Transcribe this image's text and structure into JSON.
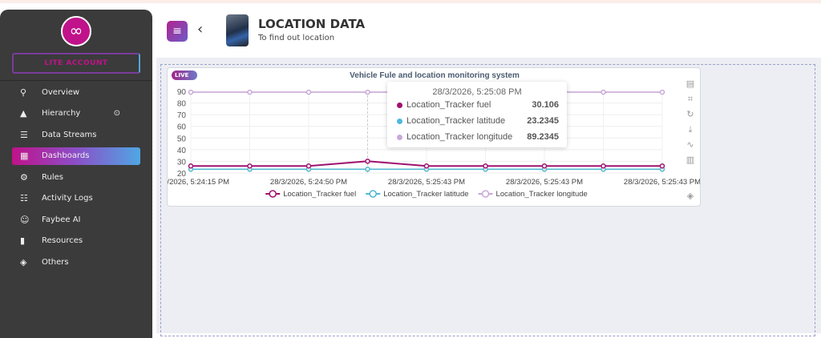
{
  "sidebar": {
    "account": "LITE ACCOUNT",
    "items": [
      {
        "label": "Overview",
        "icon": "search-icon",
        "glyph": "⚲"
      },
      {
        "label": "Hierarchy",
        "icon": "hierarchy-icon",
        "glyph": "▲"
      },
      {
        "label": "Data Streams",
        "icon": "database-icon",
        "glyph": "☰"
      },
      {
        "label": "Dashboards",
        "icon": "dashboard-icon",
        "glyph": "▦"
      },
      {
        "label": "Rules",
        "icon": "gear-icon",
        "glyph": "⚙"
      },
      {
        "label": "Activity Logs",
        "icon": "list-icon",
        "glyph": "☷"
      },
      {
        "label": "Faybee AI",
        "icon": "robot-icon",
        "glyph": "☺"
      },
      {
        "label": "Resources",
        "icon": "book-icon",
        "glyph": "▮"
      },
      {
        "label": "Others",
        "icon": "tag-icon",
        "glyph": "◈"
      }
    ],
    "active": "Dashboards"
  },
  "header": {
    "title": "LOCATION DATA",
    "subtitle": "To find out location"
  },
  "widget": {
    "live": "LIVE",
    "title": "Vehicle Fule and location monitoring system"
  },
  "tooltip": {
    "time": "28/3/2026, 5:25:08 PM",
    "rows": [
      {
        "label": "Location_Tracker fuel",
        "value": "30.106",
        "color": "#a0106e"
      },
      {
        "label": "Location_Tracker latitude",
        "value": "23.2345",
        "color": "#4fb8e0"
      },
      {
        "label": "Location_Tracker longitude",
        "value": "89.2345",
        "color": "#c9a8d8"
      }
    ]
  },
  "chart_data": {
    "type": "line",
    "ylim": [
      20,
      90
    ],
    "yticks": [
      20,
      30,
      40,
      50,
      60,
      70,
      80,
      90
    ],
    "xtick_labels": [
      "28/3/2026, 5:24:15 PM",
      "28/3/2026, 5:24:50 PM",
      "28/3/2026, 5:25:43 PM",
      "28/3/2026, 5:25:43 PM",
      "28/3/2026, 5:25:43 PM"
    ],
    "grid": true,
    "legend": "bottom",
    "series": [
      {
        "name": "Location_Tracker fuel",
        "color": "#a0106e",
        "values": [
          26,
          26,
          26,
          30.106,
          26,
          26,
          26,
          26,
          26
        ]
      },
      {
        "name": "Location_Tracker latitude",
        "color": "#4fb8d0",
        "values": [
          23.2345,
          23.2345,
          23.2345,
          23.2345,
          23.2345,
          23.2345,
          23.2345,
          23.2345,
          23.2345
        ]
      },
      {
        "name": "Location_Tracker longitude",
        "color": "#c9a8d8",
        "values": [
          89.2345,
          89.2345,
          89.2345,
          89.2345,
          89.2345,
          89.2345,
          89.2345,
          89.2345,
          89.2345
        ]
      }
    ]
  }
}
